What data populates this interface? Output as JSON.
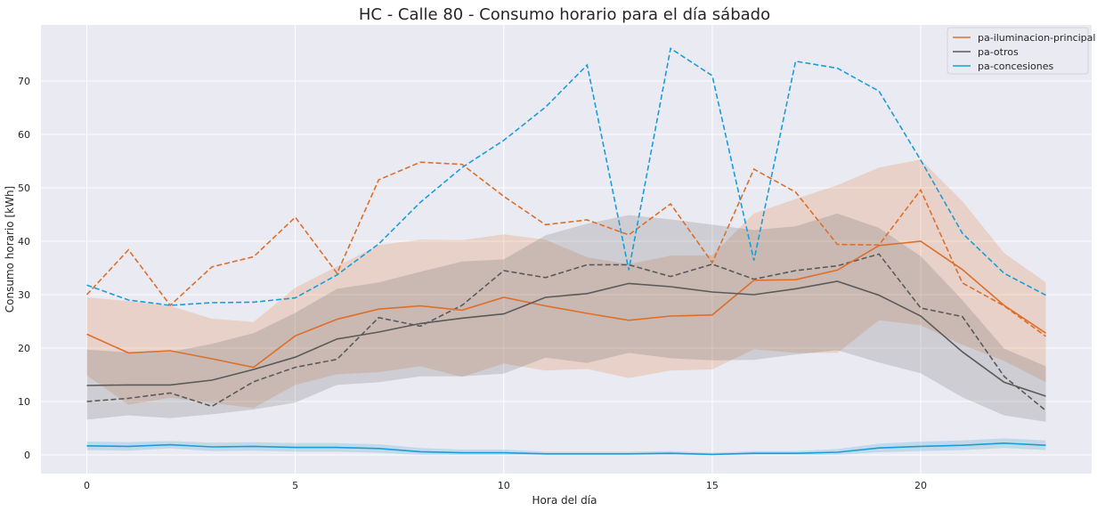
{
  "chart_data": {
    "type": "line",
    "title": "HC - Calle 80 - Consumo horario para el día sábado",
    "xlabel": "Hora del día",
    "ylabel": "Consumo horario [kWh]",
    "xlim": [
      -1.1,
      24.1
    ],
    "ylim": [
      -3.5,
      80.5
    ],
    "xticks": [
      0,
      5,
      10,
      15,
      20
    ],
    "yticks": [
      0,
      10,
      20,
      30,
      40,
      50,
      60,
      70
    ],
    "grid": true,
    "legend_position": "top-right",
    "x": [
      0,
      1,
      2,
      3,
      4,
      5,
      6,
      7,
      8,
      9,
      10,
      11,
      12,
      13,
      14,
      15,
      16,
      17,
      18,
      19,
      20,
      21,
      22,
      23
    ],
    "series": [
      {
        "name": "pa-iluminacion-principal",
        "color": "#dd6f2a",
        "values": [
          22.6,
          19.1,
          19.5,
          18.0,
          16.4,
          22.3,
          25.4,
          27.3,
          27.9,
          27.1,
          29.5,
          27.9,
          26.5,
          25.2,
          26.0,
          26.2,
          32.7,
          32.8,
          34.6,
          39.2,
          40.0,
          34.7,
          28.0,
          22.8
        ],
        "band_upper": [
          29.5,
          28.8,
          27.9,
          25.5,
          24.9,
          31.3,
          35.3,
          39.3,
          40.3,
          40.2,
          41.3,
          40.3,
          37.0,
          35.7,
          37.3,
          37.4,
          45.2,
          47.9,
          50.5,
          53.8,
          55.3,
          47.5,
          37.8,
          32.3
        ],
        "band_lower": [
          14.9,
          9.4,
          10.7,
          9.7,
          8.8,
          13.1,
          15.1,
          15.5,
          16.6,
          14.6,
          17.1,
          15.8,
          16.1,
          14.4,
          15.8,
          16.0,
          19.8,
          19.1,
          19.1,
          25.2,
          24.3,
          20.6,
          17.6,
          13.6
        ],
        "dashed_values": [
          30.0,
          38.4,
          28.0,
          35.2,
          37.1,
          44.5,
          34.0,
          51.5,
          54.8,
          54.4,
          48.4,
          43.1,
          44.0,
          41.2,
          47.0,
          36.0,
          53.5,
          49.2,
          39.4,
          39.3,
          49.6,
          32.2,
          27.9,
          22.2
        ]
      },
      {
        "name": "pa-otros",
        "color": "#5a5a5a",
        "values": [
          13.0,
          13.1,
          13.1,
          14.0,
          16.0,
          18.3,
          21.7,
          23.0,
          24.6,
          25.6,
          26.4,
          29.5,
          30.2,
          32.1,
          31.5,
          30.5,
          30.0,
          31.1,
          32.5,
          29.9,
          26.0,
          19.3,
          13.6,
          11.0
        ],
        "band_upper": [
          19.7,
          19.2,
          19.3,
          20.8,
          22.8,
          26.6,
          31.1,
          32.3,
          34.3,
          36.2,
          36.6,
          41.1,
          43.3,
          44.9,
          44.1,
          43.1,
          42.1,
          42.8,
          45.2,
          42.5,
          37.2,
          29.0,
          19.9,
          16.6
        ],
        "band_lower": [
          6.6,
          7.4,
          6.9,
          7.6,
          8.5,
          9.8,
          13.1,
          13.6,
          14.7,
          14.7,
          15.2,
          18.2,
          17.2,
          19.1,
          18.1,
          17.7,
          17.8,
          18.8,
          19.6,
          17.3,
          15.3,
          10.8,
          7.4,
          6.2
        ],
        "dashed_values": [
          10.0,
          10.6,
          11.6,
          9.1,
          13.7,
          16.4,
          17.9,
          25.7,
          24.1,
          28.0,
          34.5,
          33.2,
          35.6,
          35.6,
          33.4,
          35.7,
          32.9,
          34.5,
          35.4,
          37.6,
          27.5,
          25.9,
          14.7,
          8.3
        ]
      },
      {
        "name": "pa-concesiones",
        "color": "#1a9dd8",
        "values": [
          1.7,
          1.6,
          1.9,
          1.5,
          1.6,
          1.4,
          1.4,
          1.2,
          0.6,
          0.4,
          0.4,
          0.2,
          0.2,
          0.2,
          0.3,
          0.1,
          0.3,
          0.3,
          0.5,
          1.3,
          1.6,
          1.8,
          2.2,
          1.8
        ],
        "band_upper": [
          2.5,
          2.4,
          2.6,
          2.3,
          2.4,
          2.2,
          2.2,
          2.0,
          1.3,
          1.0,
          1.0,
          0.6,
          0.6,
          0.6,
          0.7,
          0.4,
          0.7,
          0.7,
          1.1,
          2.1,
          2.5,
          2.7,
          3.1,
          2.7
        ],
        "band_lower": [
          0.9,
          0.8,
          1.2,
          0.7,
          0.8,
          0.6,
          0.6,
          0.4,
          0.0,
          0.0,
          0.0,
          0.0,
          0.0,
          0.0,
          0.0,
          0.0,
          0.0,
          0.0,
          0.0,
          0.5,
          0.7,
          0.9,
          1.3,
          0.9
        ],
        "dashed_values": [
          31.8,
          29.0,
          28.0,
          28.5,
          28.6,
          29.4,
          33.7,
          39.5,
          47.3,
          53.8,
          58.9,
          65.1,
          73.0,
          34.6,
          76.1,
          71.0,
          36.4,
          73.7,
          72.4,
          68.1,
          55.2,
          41.5,
          34.0,
          29.9
        ]
      }
    ]
  }
}
